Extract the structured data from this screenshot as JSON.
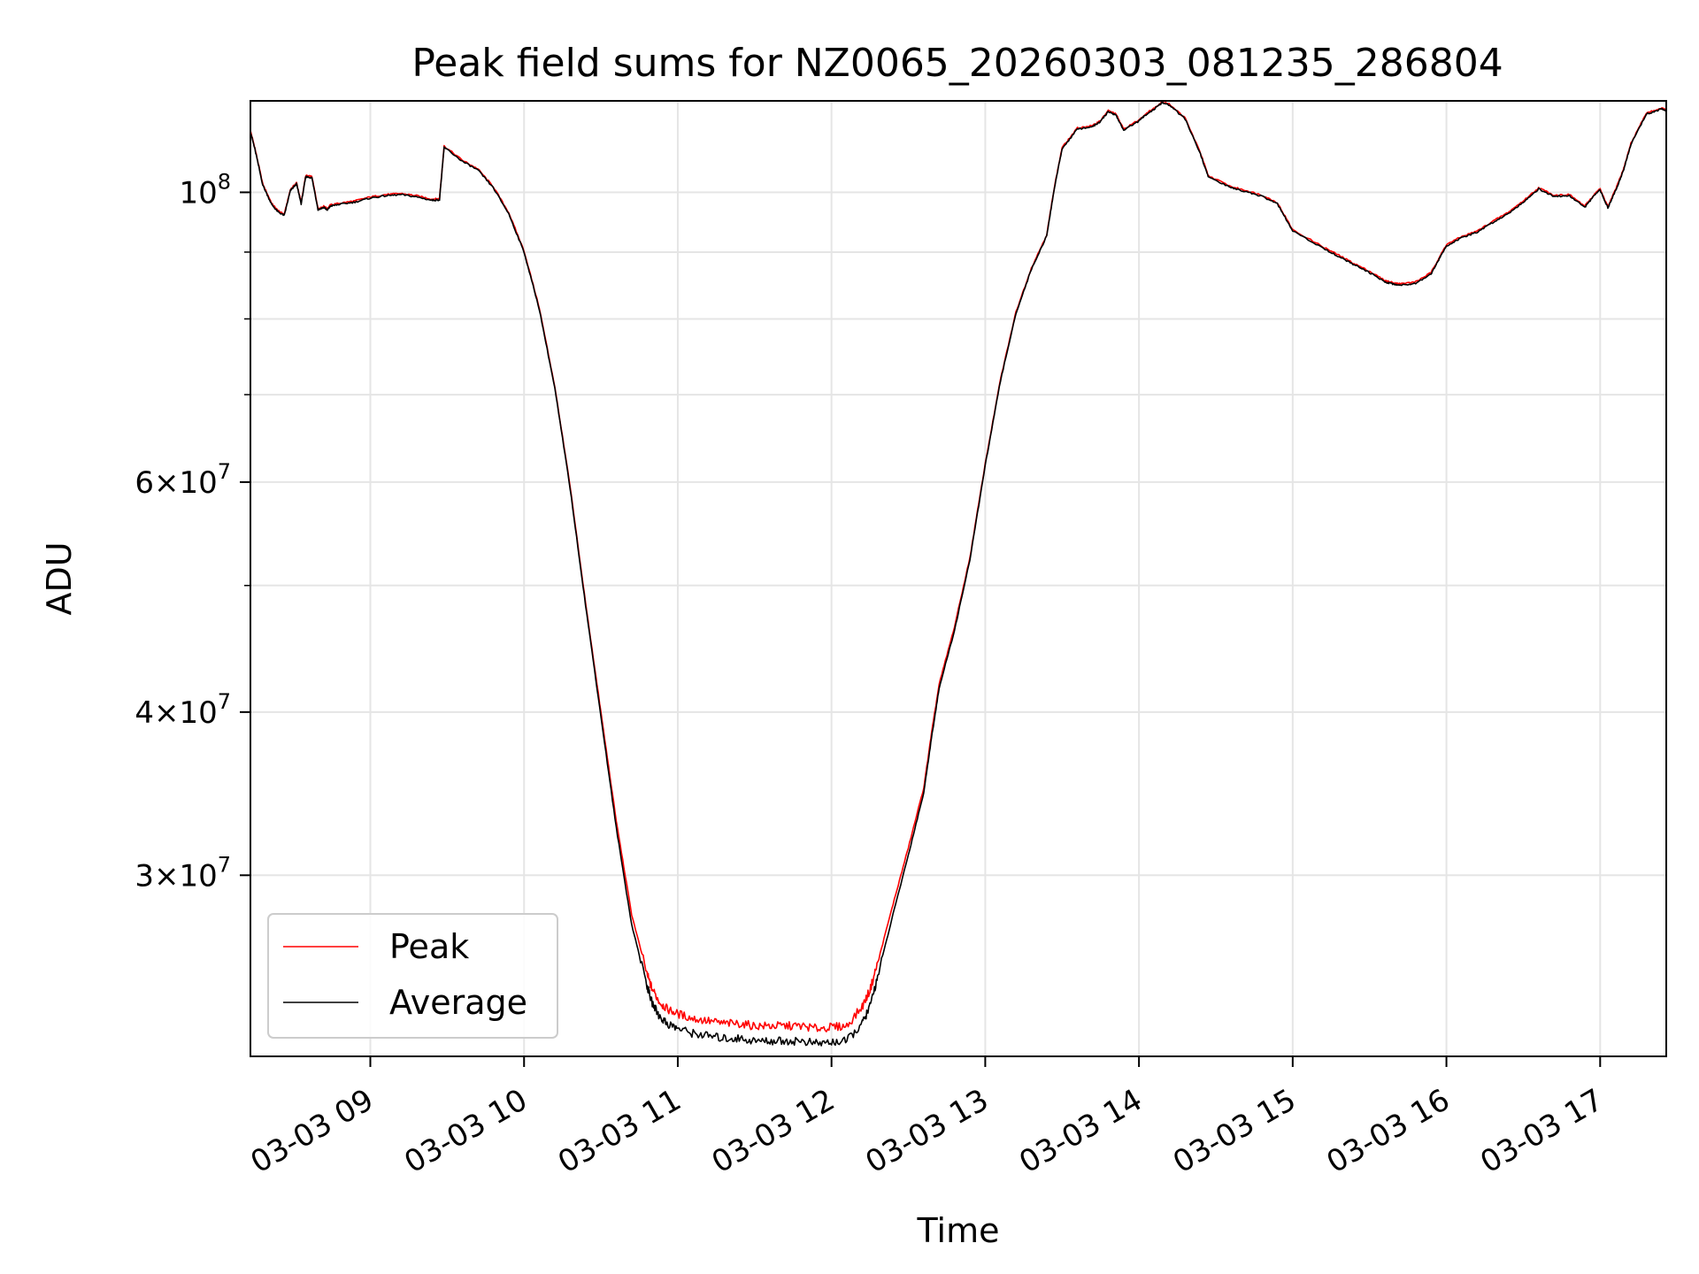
{
  "chart_data": {
    "type": "line",
    "title": "Peak field sums for NZ0065_20260303_081235_286804",
    "xlabel": "Time",
    "ylabel": "ADU",
    "yscale": "log",
    "ylim": [
      21800000,
      117500000
    ],
    "xlim_hours": [
      8.22,
      17.43
    ],
    "grid": true,
    "legend_location": "lower-left",
    "x_ticks": [
      {
        "hour": 9,
        "label": "03-03 09"
      },
      {
        "hour": 10,
        "label": "03-03 10"
      },
      {
        "hour": 11,
        "label": "03-03 11"
      },
      {
        "hour": 12,
        "label": "03-03 12"
      },
      {
        "hour": 13,
        "label": "03-03 13"
      },
      {
        "hour": 14,
        "label": "03-03 14"
      },
      {
        "hour": 15,
        "label": "03-03 15"
      },
      {
        "hour": 16,
        "label": "03-03 16"
      },
      {
        "hour": 17,
        "label": "03-03 17"
      }
    ],
    "y_major_ticks": [
      {
        "value": 30000000,
        "mantissa": "3",
        "exp": "7"
      },
      {
        "value": 40000000,
        "mantissa": "4",
        "exp": "7"
      },
      {
        "value": 60000000,
        "mantissa": "6",
        "exp": "7"
      },
      {
        "value": 100000000,
        "mantissa": "",
        "exp": "8"
      }
    ],
    "y_minor_ticks": [
      50000000,
      70000000,
      80000000,
      90000000
    ],
    "series": [
      {
        "name": "Peak",
        "color": "#ff0000",
        "x_hours": [
          8.22,
          8.25,
          8.3,
          8.36,
          8.4,
          8.44,
          8.48,
          8.52,
          8.55,
          8.58,
          8.62,
          8.66,
          8.7,
          8.72,
          8.74,
          8.8,
          8.9,
          9.0,
          9.1,
          9.2,
          9.3,
          9.4,
          9.45,
          9.48,
          9.6,
          9.7,
          9.8,
          9.9,
          10.0,
          10.1,
          10.2,
          10.3,
          10.4,
          10.5,
          10.6,
          10.7,
          10.8,
          10.83,
          10.88,
          10.93,
          11.0,
          11.1,
          11.2,
          11.3,
          11.4,
          11.5,
          11.6,
          11.7,
          11.8,
          11.9,
          12.0,
          12.1,
          12.2,
          12.25,
          12.3,
          12.4,
          12.5,
          12.6,
          12.65,
          12.7,
          12.8,
          12.9,
          13.0,
          13.1,
          13.2,
          13.3,
          13.4,
          13.45,
          13.5,
          13.6,
          13.7,
          13.75,
          13.8,
          13.85,
          13.9,
          14.0,
          14.05,
          14.1,
          14.15,
          14.2,
          14.3,
          14.4,
          14.45,
          14.6,
          14.7,
          14.8,
          14.9,
          15.0,
          15.2,
          15.3,
          15.4,
          15.5,
          15.6,
          15.65,
          15.7,
          15.8,
          15.9,
          15.95,
          16.0,
          16.1,
          16.2,
          16.3,
          16.4,
          16.5,
          16.6,
          16.7,
          16.8,
          16.9,
          16.97,
          17.0,
          17.05,
          17.1,
          17.15,
          17.2,
          17.3,
          17.4,
          17.43
        ],
        "values": [
          111500000,
          108000000,
          101500000,
          98000000,
          96800000,
          96200000,
          100500000,
          101700000,
          98200000,
          103000000,
          102800000,
          97200000,
          97600000,
          97100000,
          97800000,
          98100000,
          98500000,
          99200000,
          99600000,
          99800000,
          99400000,
          98800000,
          98900000,
          108500000,
          105800000,
          104200000,
          101000000,
          96500000,
          90200000,
          81500000,
          71000000,
          59500000,
          48500000,
          40000000,
          33000000,
          28000000,
          25200000,
          24600000,
          24000000,
          23700000,
          23500000,
          23300000,
          23200000,
          23100000,
          23100000,
          23000000,
          23000000,
          23000000,
          23000000,
          22900000,
          22950000,
          23000000,
          23800000,
          24500000,
          25700000,
          28500000,
          31500000,
          35000000,
          38500000,
          42000000,
          46500000,
          52500000,
          62000000,
          72000000,
          81000000,
          87500000,
          92800000,
          101000000,
          108200000,
          112000000,
          112500000,
          113500000,
          115500000,
          114800000,
          111800000,
          113600000,
          115000000,
          116000000,
          117300000,
          116800000,
          114000000,
          107200000,
          103000000,
          101000000,
          100300000,
          99500000,
          98200000,
          93600000,
          90800000,
          89500000,
          88200000,
          87000000,
          85600000,
          85300000,
          85100000,
          85400000,
          86800000,
          89000000,
          91200000,
          92500000,
          93400000,
          95000000,
          96500000,
          98500000,
          100800000,
          99500000,
          99600000,
          97600000,
          99900000,
          100600000,
          97500000,
          100500000,
          104000000,
          109000000,
          115000000,
          116000000,
          115600000
        ]
      },
      {
        "name": "Average",
        "color": "#000000",
        "x_hours": [
          8.22,
          8.25,
          8.3,
          8.36,
          8.4,
          8.44,
          8.48,
          8.52,
          8.55,
          8.58,
          8.62,
          8.66,
          8.7,
          8.72,
          8.74,
          8.8,
          8.9,
          9.0,
          9.1,
          9.2,
          9.3,
          9.4,
          9.45,
          9.48,
          9.6,
          9.7,
          9.8,
          9.9,
          10.0,
          10.1,
          10.2,
          10.3,
          10.4,
          10.5,
          10.6,
          10.7,
          10.8,
          10.83,
          10.88,
          10.93,
          11.0,
          11.1,
          11.2,
          11.3,
          11.4,
          11.5,
          11.6,
          11.7,
          11.8,
          11.9,
          12.0,
          12.1,
          12.2,
          12.25,
          12.3,
          12.4,
          12.5,
          12.6,
          12.65,
          12.7,
          12.8,
          12.9,
          13.0,
          13.1,
          13.2,
          13.3,
          13.4,
          13.45,
          13.5,
          13.6,
          13.7,
          13.75,
          13.8,
          13.85,
          13.9,
          14.0,
          14.05,
          14.1,
          14.15,
          14.2,
          14.3,
          14.4,
          14.45,
          14.6,
          14.7,
          14.8,
          14.9,
          15.0,
          15.2,
          15.3,
          15.4,
          15.5,
          15.6,
          15.65,
          15.7,
          15.8,
          15.9,
          15.95,
          16.0,
          16.1,
          16.2,
          16.3,
          16.4,
          16.5,
          16.6,
          16.7,
          16.8,
          16.9,
          16.97,
          17.0,
          17.05,
          17.1,
          17.15,
          17.2,
          17.3,
          17.4,
          17.43
        ],
        "values": [
          111300000,
          107800000,
          101300000,
          97800000,
          96600000,
          96000000,
          100300000,
          101500000,
          98000000,
          102800000,
          102600000,
          97000000,
          97400000,
          96900000,
          97600000,
          97900000,
          98300000,
          99000000,
          99400000,
          99600000,
          99200000,
          98600000,
          98700000,
          108300000,
          105600000,
          104000000,
          100800000,
          96300000,
          90000000,
          81300000,
          70800000,
          59300000,
          48300000,
          39700000,
          32600000,
          27500000,
          24700000,
          24000000,
          23400000,
          23100000,
          22900000,
          22700000,
          22600000,
          22500000,
          22500000,
          22400000,
          22400000,
          22400000,
          22400000,
          22300000,
          22350000,
          22400000,
          23100000,
          23800000,
          25100000,
          28000000,
          31100000,
          34700000,
          38200000,
          41700000,
          46200000,
          52300000,
          61800000,
          71800000,
          80800000,
          87300000,
          92600000,
          100800000,
          108000000,
          111800000,
          112300000,
          113300000,
          115300000,
          114600000,
          111600000,
          113400000,
          114800000,
          115800000,
          117100000,
          116600000,
          113800000,
          107000000,
          102800000,
          100800000,
          100100000,
          99300000,
          98000000,
          93400000,
          90600000,
          89300000,
          88000000,
          86800000,
          85400000,
          85100000,
          84900000,
          85200000,
          86600000,
          88800000,
          91000000,
          92300000,
          93200000,
          94800000,
          96300000,
          98300000,
          100600000,
          99300000,
          99400000,
          97400000,
          99700000,
          100400000,
          97300000,
          100300000,
          103800000,
          108800000,
          114800000,
          115800000,
          115400000
        ]
      }
    ]
  }
}
